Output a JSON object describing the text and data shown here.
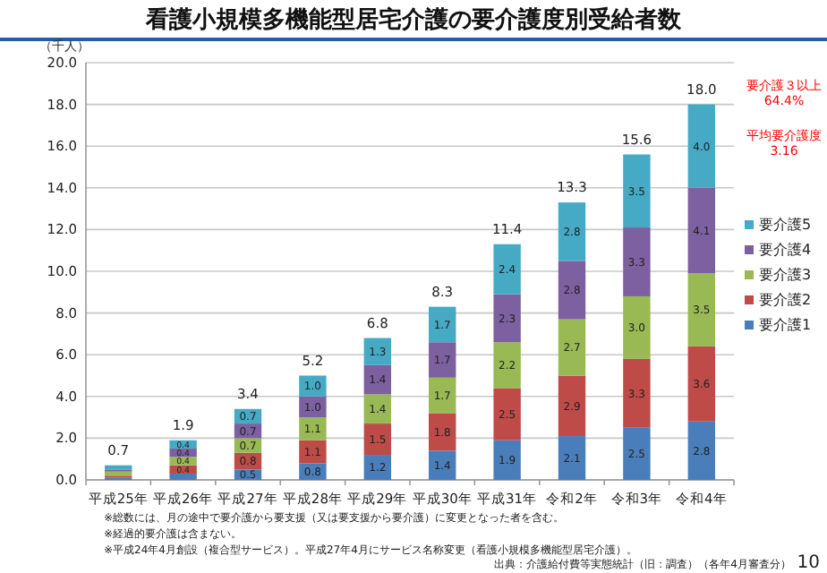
{
  "chart_data": {
    "type": "bar",
    "stacked": true,
    "title": "看護小規模多機能型居宅介護の要介護度別受給者数",
    "ylabel": "（千人）",
    "categories": [
      "平成25年",
      "平成26年",
      "平成27年",
      "平成28年",
      "平成29年",
      "平成30年",
      "平成31年",
      "令和2年",
      "令和3年",
      "令和4年"
    ],
    "series": [
      {
        "name": "要介護1",
        "color": "#4a7ebb",
        "values": [
          0.1,
          0.3,
          0.5,
          0.8,
          1.2,
          1.4,
          1.9,
          2.1,
          2.5,
          2.8
        ],
        "value_labels": [
          null,
          null,
          "0.5",
          "0.8",
          "1.2",
          "1.4",
          "1.9",
          "2.1",
          "2.5",
          "2.8"
        ]
      },
      {
        "name": "要介護2",
        "color": "#be4b48",
        "values": [
          0.1,
          0.4,
          0.8,
          1.1,
          1.5,
          1.8,
          2.5,
          2.9,
          3.3,
          3.6
        ],
        "value_labels": [
          null,
          "0.4",
          "0.8",
          "1.1",
          "1.5",
          "1.8",
          "2.5",
          "2.9",
          "3.3",
          "3.6"
        ]
      },
      {
        "name": "要介護3",
        "color": "#98b954",
        "values": [
          0.2,
          0.4,
          0.7,
          1.1,
          1.4,
          1.7,
          2.2,
          2.7,
          3.0,
          3.5
        ],
        "value_labels": [
          null,
          "0.4",
          "0.7",
          "1.1",
          "1.4",
          "1.7",
          "2.2",
          "2.7",
          "3.0",
          "3.5"
        ]
      },
      {
        "name": "要介護4",
        "color": "#7d60a0",
        "values": [
          0.1,
          0.4,
          0.7,
          1.0,
          1.4,
          1.7,
          2.3,
          2.8,
          3.3,
          4.1
        ],
        "value_labels": [
          null,
          "0.4",
          "0.7",
          "1.0",
          "1.4",
          "1.7",
          "2.3",
          "2.8",
          "3.3",
          "4.1"
        ]
      },
      {
        "name": "要介護5",
        "color": "#46aac5",
        "values": [
          0.2,
          0.4,
          0.7,
          1.0,
          1.3,
          1.7,
          2.4,
          2.8,
          3.5,
          4.0
        ],
        "value_labels": [
          null,
          "0.4",
          "0.7",
          "1.0",
          "1.3",
          "1.7",
          "2.4",
          "2.8",
          "3.5",
          "4.0"
        ]
      }
    ],
    "totals": [
      "0.7",
      "1.9",
      "3.4",
      "5.2",
      "6.8",
      "8.3",
      "11.4",
      "13.3",
      "15.6",
      "18.0"
    ],
    "ylim": [
      0,
      20
    ],
    "yticks": [
      {
        "value": 0,
        "label": "0.0"
      },
      {
        "value": 2,
        "label": "2.0"
      },
      {
        "value": 4,
        "label": "4.0"
      },
      {
        "value": 6,
        "label": "6.0"
      },
      {
        "value": 8,
        "label": "8.0"
      },
      {
        "value": 10,
        "label": "10.0"
      },
      {
        "value": 12,
        "label": "12.0"
      },
      {
        "value": 14,
        "label": "14.0"
      },
      {
        "value": 16,
        "label": "16.0"
      },
      {
        "value": 18,
        "label": "18.0"
      },
      {
        "value": 20,
        "label": "20.0"
      }
    ],
    "grid": "y",
    "legend": "right",
    "annotations": [
      "要介護３以上\n64.4%",
      "平均要介護度\n3.16",
      "※総数には、月の途中で要介護から要支援（又は要支援から要介護）に変更となった者を含む。",
      "※経過的要介護は含まない。",
      "※平成24年4月創設（複合型サービス）。平成27年4月にサービス名称変更（看護小規模多機能型居宅介護）。",
      "出典：介護給付費等実態統計（旧：調査）（各年4月審査分）",
      "10"
    ]
  }
}
